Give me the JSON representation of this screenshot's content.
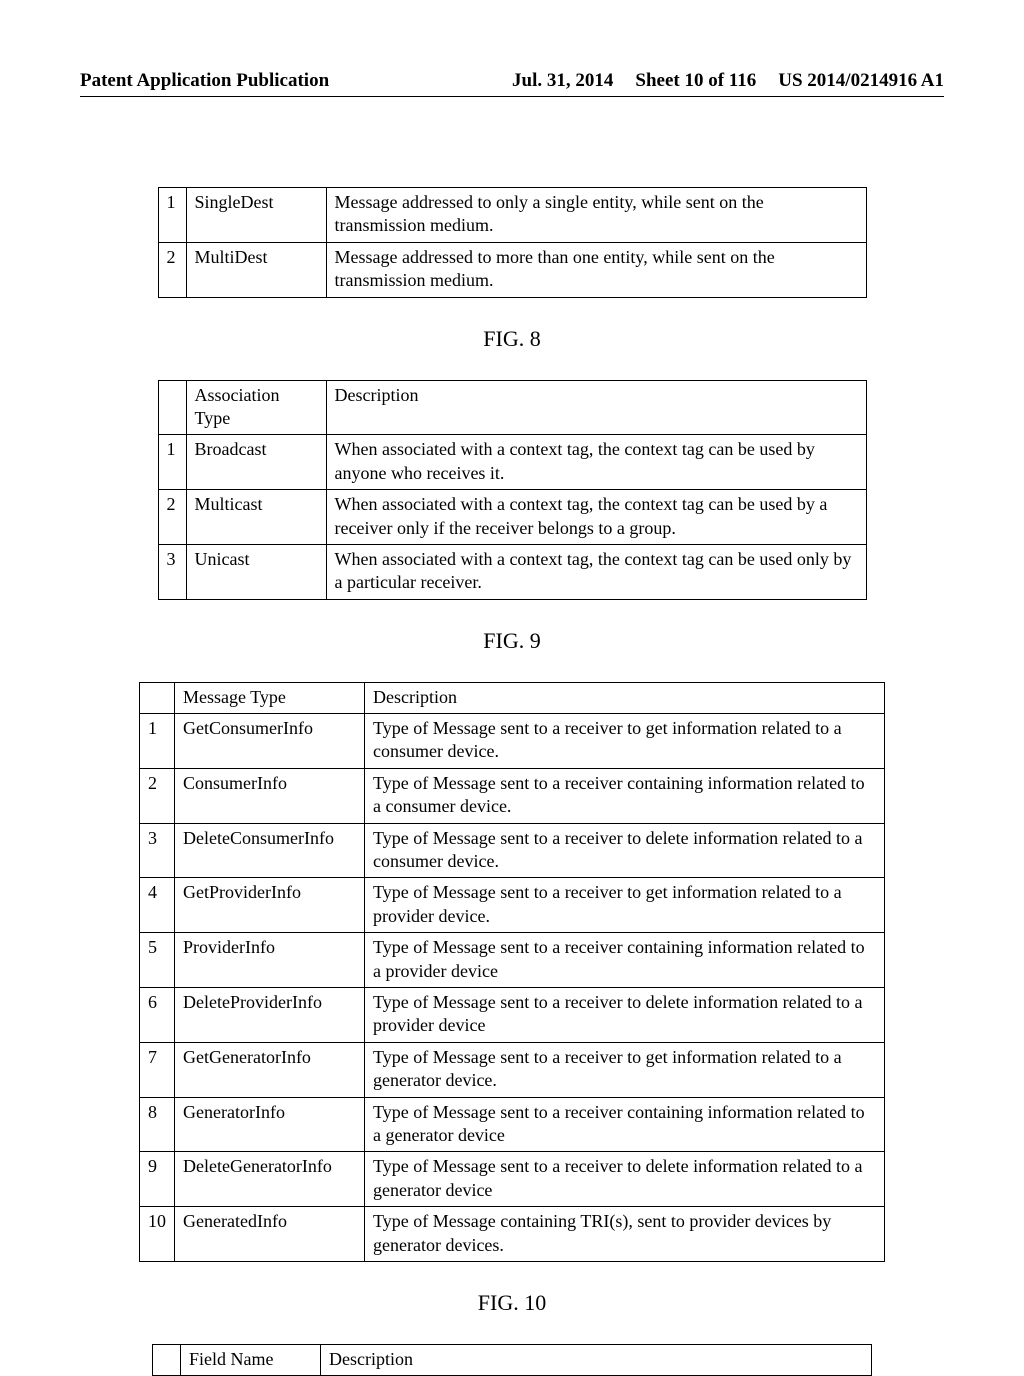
{
  "header": {
    "left": "Patent Application Publication",
    "date": "Jul. 31, 2014",
    "sheet": "Sheet 10 of 116",
    "pub": "US 2014/0214916 A1"
  },
  "fig8": {
    "rows": [
      {
        "n": "1",
        "type": "SingleDest",
        "desc": "Message addressed to only a single entity, while sent on the transmission medium."
      },
      {
        "n": "2",
        "type": "MultiDest",
        "desc": "Message addressed to more than one entity, while sent on the transmission medium."
      }
    ],
    "label": "FIG. 8"
  },
  "fig9": {
    "head": {
      "type": "Association Type",
      "desc": "Description"
    },
    "rows": [
      {
        "n": "1",
        "type": "Broadcast",
        "desc": "When associated with a context tag, the context tag can be used by anyone who receives it."
      },
      {
        "n": "2",
        "type": "Multicast",
        "desc": "When associated with a context tag, the context tag can be used by a receiver only if the receiver belongs to a group."
      },
      {
        "n": "3",
        "type": "Unicast",
        "desc": "When associated with a context tag, the context tag can be used only by a particular receiver."
      }
    ],
    "label": "FIG. 9"
  },
  "fig10": {
    "head": {
      "type": "Message Type",
      "desc": "Description"
    },
    "rows": [
      {
        "n": "1",
        "type": "GetConsumerInfo",
        "desc": "Type of Message sent to a receiver to get information related to a consumer device."
      },
      {
        "n": "2",
        "type": "ConsumerInfo",
        "desc": "Type of Message sent to a receiver containing information related to a consumer device."
      },
      {
        "n": "3",
        "type": "DeleteConsumerInfo",
        "desc": "Type of Message sent to a receiver to delete information related to a consumer device."
      },
      {
        "n": "4",
        "type": "GetProviderInfo",
        "desc": "Type of Message sent to a receiver to get information related to a provider device."
      },
      {
        "n": "5",
        "type": "ProviderInfo",
        "desc": "Type of Message sent to a receiver containing information related to a provider device"
      },
      {
        "n": "6",
        "type": "DeleteProviderInfo",
        "desc": "Type of Message sent to a receiver to delete information related to a provider device"
      },
      {
        "n": "7",
        "type": "GetGeneratorInfo",
        "desc": "Type of Message sent to a receiver to get information related to a generator device."
      },
      {
        "n": "8",
        "type": "GeneratorInfo",
        "desc": "Type of Message sent to a receiver containing information related to a generator device"
      },
      {
        "n": "9",
        "type": "DeleteGeneratorInfo",
        "desc": "Type of Message sent to a receiver to delete information related to a generator device"
      },
      {
        "n": "10",
        "type": "GeneratedInfo",
        "desc": "Type of Message containing TRI(s), sent to provider devices by generator devices."
      }
    ],
    "label": "FIG. 10"
  },
  "fig11": {
    "head": {
      "left": "Field Name",
      "right": "Description"
    }
  }
}
